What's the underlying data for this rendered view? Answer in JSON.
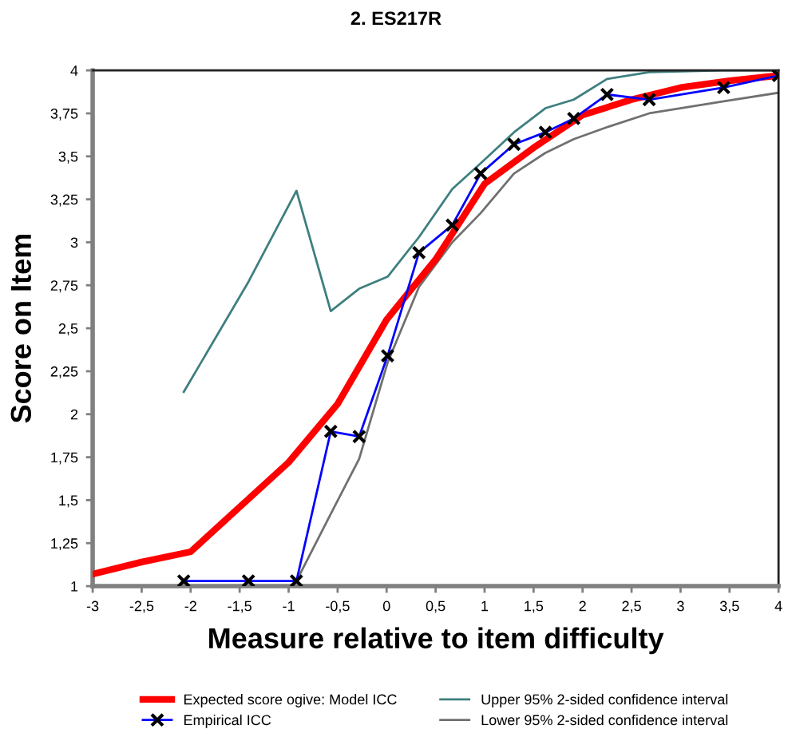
{
  "chart_data": {
    "type": "line",
    "title": "2. ES217R",
    "xlabel": "Measure relative to item difficulty",
    "ylabel": "Score on Item",
    "xlim": [
      -3,
      4
    ],
    "xticks": [
      -3,
      {
        "value": -2.5,
        "label": "-2,5"
      },
      -2,
      {
        "value": -1.5,
        "label": "-1,5"
      },
      -1,
      {
        "value": -0.5,
        "label": "-0,5"
      },
      0,
      {
        "value": 0.5,
        "label": "0,5"
      },
      1,
      {
        "value": 1.5,
        "label": "1,5"
      },
      2,
      {
        "value": 2.5,
        "label": "2,5"
      },
      3,
      {
        "value": 3.5,
        "label": "3,5"
      },
      4
    ],
    "ylim": [
      1,
      4
    ],
    "yticks": [
      1,
      {
        "value": 1.25,
        "label": "1,25"
      },
      {
        "value": 1.5,
        "label": "1,5"
      },
      {
        "value": 1.75,
        "label": "1,75"
      },
      2,
      {
        "value": 2.25,
        "label": "2,25"
      },
      {
        "value": 2.5,
        "label": "2,5"
      },
      {
        "value": 2.75,
        "label": "2,75"
      },
      3,
      {
        "value": 3.25,
        "label": "3,25"
      },
      {
        "value": 3.5,
        "label": "3,5"
      },
      {
        "value": 3.75,
        "label": "3,75"
      },
      4
    ],
    "grid": false,
    "legend": "bottom",
    "series": [
      {
        "name": "Expected score ogive: Model ICC",
        "color": "#ff0000",
        "marker": "none",
        "x": [
          -3,
          -2.5,
          -2,
          -1.5,
          -1,
          -0.5,
          0,
          0.5,
          1,
          1.5,
          2,
          2.5,
          3,
          3.5,
          4
        ],
        "values": [
          1.07,
          1.14,
          1.2,
          1.46,
          1.72,
          2.06,
          2.55,
          2.9,
          3.34,
          3.55,
          3.74,
          3.83,
          3.9,
          3.94,
          3.97
        ]
      },
      {
        "name": "Empirical ICC",
        "color": "#0000ff",
        "marker": "cross",
        "x": [
          -2.07,
          -1.41,
          -0.92,
          -0.57,
          -0.28,
          0.01,
          0.33,
          0.67,
          0.96,
          1.3,
          1.62,
          1.91,
          2.25,
          2.68,
          3.44,
          4.0
        ],
        "values": [
          1.03,
          1.03,
          1.03,
          1.9,
          1.87,
          2.34,
          2.94,
          3.1,
          3.4,
          3.57,
          3.64,
          3.72,
          3.86,
          3.83,
          3.9,
          3.97
        ]
      },
      {
        "name": "Upper 95% 2-sided confidence interval",
        "color": "#3f7f7f",
        "marker": "none",
        "x": [
          -2.07,
          -1.41,
          -0.92,
          -0.57,
          -0.28,
          0.01,
          0.33,
          0.67,
          0.96,
          1.3,
          1.62,
          1.91,
          2.25,
          2.68,
          3.44,
          4.0
        ],
        "values": [
          2.13,
          2.77,
          3.3,
          2.6,
          2.73,
          2.8,
          3.03,
          3.31,
          3.46,
          3.64,
          3.78,
          3.83,
          3.95,
          3.99,
          4.0,
          4.0
        ]
      },
      {
        "name": "Lower 95% 2-sided confidence interval",
        "color": "#707070",
        "marker": "none",
        "x": [
          -0.92,
          -0.57,
          -0.28,
          0.01,
          0.33,
          0.67,
          0.96,
          1.3,
          1.62,
          1.91,
          2.25,
          2.68,
          3.44,
          4.0
        ],
        "values": [
          1.03,
          1.42,
          1.74,
          2.3,
          2.74,
          3.0,
          3.17,
          3.4,
          3.52,
          3.6,
          3.67,
          3.75,
          3.82,
          3.87
        ]
      }
    ]
  }
}
